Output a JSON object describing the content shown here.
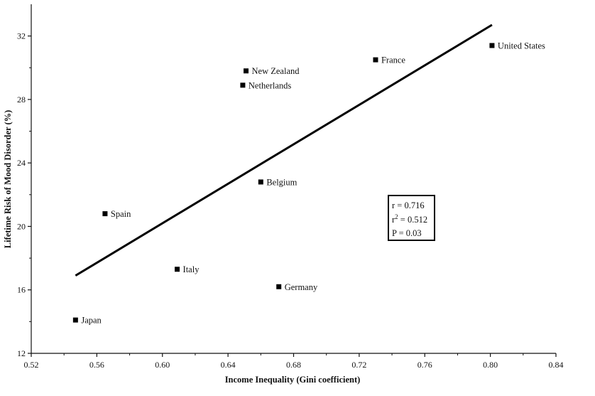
{
  "chart_data": {
    "type": "scatter",
    "title": "",
    "xlabel": "Income Inequality (Gini coefficient)",
    "ylabel": "Lifetime Risk of Mood Disorder (%)",
    "xlim": [
      0.52,
      0.84
    ],
    "ylim": [
      12,
      34
    ],
    "x_ticks": [
      0.52,
      0.56,
      0.6,
      0.64,
      0.68,
      0.72,
      0.76,
      0.8,
      0.84
    ],
    "x_tick_labels": [
      "0.52",
      "0.56",
      "0.60",
      "0.64",
      "0.68",
      "0.72",
      "0.76",
      "0.80",
      "0.84"
    ],
    "y_ticks": [
      12,
      16,
      20,
      24,
      28,
      32
    ],
    "y_tick_labels": [
      "12",
      "16",
      "20",
      "24",
      "28",
      "32"
    ],
    "grid": false,
    "points": [
      {
        "label": "United States",
        "x": 0.801,
        "y": 31.4
      },
      {
        "label": "France",
        "x": 0.73,
        "y": 30.5
      },
      {
        "label": "New Zealand",
        "x": 0.651,
        "y": 29.8
      },
      {
        "label": "Netherlands",
        "x": 0.649,
        "y": 28.9
      },
      {
        "label": "Belgium",
        "x": 0.66,
        "y": 22.8
      },
      {
        "label": "Spain",
        "x": 0.565,
        "y": 20.8
      },
      {
        "label": "Italy",
        "x": 0.609,
        "y": 17.3
      },
      {
        "label": "Germany",
        "x": 0.671,
        "y": 16.2
      },
      {
        "label": "Japan",
        "x": 0.547,
        "y": 14.1
      }
    ],
    "regression_line": {
      "x": [
        0.547,
        0.801
      ],
      "y": [
        16.9,
        32.7
      ]
    },
    "stats": {
      "r": "r = 0.716",
      "r2_prefix": "r",
      "r2_sup": "2",
      "r2_value": " = 0.512",
      "p": "P = 0.03"
    },
    "stats_box_position": "lower-right"
  }
}
